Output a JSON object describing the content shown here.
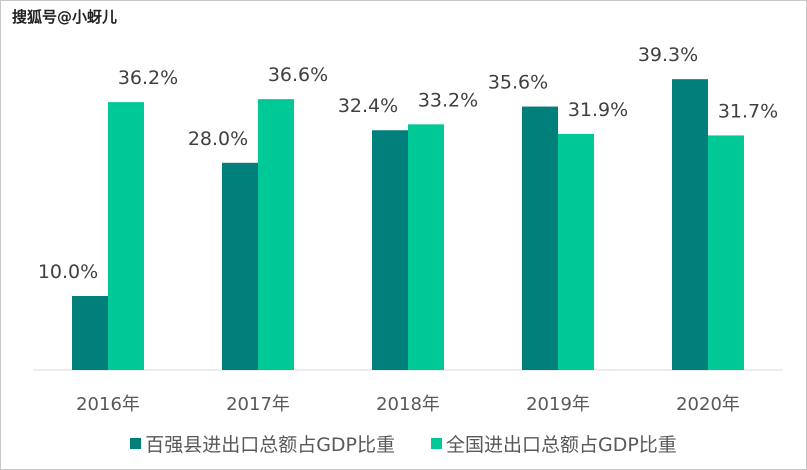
{
  "watermark": "搜狐号@小蚜儿",
  "chart_data": {
    "type": "bar",
    "categories": [
      "2016年",
      "2017年",
      "2018年",
      "2019年",
      "2020年"
    ],
    "series": [
      {
        "name": "百强县进出口总额占GDP比重",
        "color": "#007F7B",
        "values": [
          10.0,
          28.0,
          32.4,
          35.6,
          39.3
        ],
        "labels": [
          "10.0%",
          "28.0%",
          "32.4%",
          "35.6%",
          "39.3%"
        ]
      },
      {
        "name": "全国进出口总额占GDP比重",
        "color": "#00C896",
        "values": [
          36.2,
          36.6,
          33.2,
          31.9,
          31.7
        ],
        "labels": [
          "36.2%",
          "36.6%",
          "33.2%",
          "31.9%",
          "31.7%"
        ]
      }
    ],
    "ylim": [
      0,
      50
    ],
    "grid": false,
    "legend": "bottom"
  }
}
